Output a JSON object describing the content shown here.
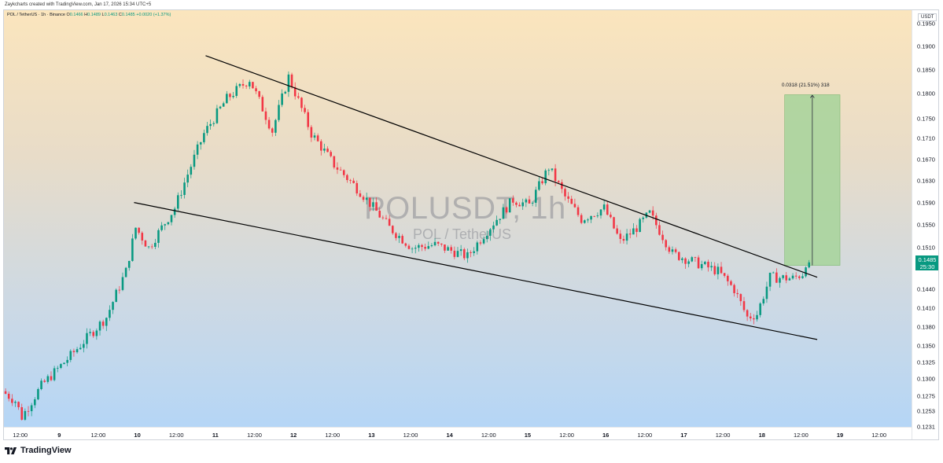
{
  "header": {
    "credit": "Zaykcharts created with TradingView.com, Jan 17, 2026 15:34 UTC+5"
  },
  "info": {
    "symbol_line": "POL / TetherUS · 1h · Binance",
    "ohlc": [
      {
        "label": "O",
        "value": "0.1466"
      },
      {
        "label": "H",
        "value": "0.1489"
      },
      {
        "label": "L",
        "value": "0.1463"
      },
      {
        "label": "C",
        "value": "0.1485"
      }
    ],
    "change": "+0.0020 (+1.37%)"
  },
  "watermark": {
    "ticker": "POLUSDT, 1h",
    "name": "POL / TetherUS"
  },
  "axis": {
    "unit": "USDT",
    "price_label": "0.1485",
    "countdown": "25:30"
  },
  "measure": {
    "label": "0.0318 (21.51%) 318"
  },
  "footer": {
    "brand": "TradingView"
  },
  "colors": {
    "up": "#089981",
    "down": "#f23645",
    "target_fill": "#a6d49a",
    "trendline": "#000000"
  },
  "chart_data": {
    "type": "candlestick",
    "symbol": "POLUSDT",
    "interval": "1h",
    "exchange": "Binance",
    "y_axis": {
      "scale": "log",
      "range": [
        0.1231,
        0.198
      ],
      "tick_labels": [
        "0.1950",
        "0.1900",
        "0.1850",
        "0.1800",
        "0.1750",
        "0.1710",
        "0.1670",
        "0.1630",
        "0.1590",
        "0.1550",
        "0.1510",
        "0.1485",
        "0.1440",
        "0.1410",
        "0.1380",
        "0.1350",
        "0.1325",
        "0.1300",
        "0.1275",
        "0.1253",
        "0.1231"
      ]
    },
    "x_axis": {
      "tick_labels": [
        "12:00",
        "9",
        "12:00",
        "10",
        "12:00",
        "11",
        "12:00",
        "12",
        "12:00",
        "13",
        "12:00",
        "14",
        "12:00",
        "15",
        "12:00",
        "16",
        "12:00",
        "17",
        "12:00",
        "18",
        "12:00",
        "19",
        "12:00"
      ],
      "range_dates": [
        "2026-01-08 07:00",
        "2026-01-19 22:00"
      ]
    },
    "price_path": [
      {
        "t": "2026-01-08 07:00",
        "p": 0.1282
      },
      {
        "t": "2026-01-08 11:00",
        "p": 0.1268
      },
      {
        "t": "2026-01-08 13:00",
        "p": 0.1245
      },
      {
        "t": "2026-01-08 19:00",
        "p": 0.129
      },
      {
        "t": "2026-01-09 04:00",
        "p": 0.1335
      },
      {
        "t": "2026-01-09 15:00",
        "p": 0.1395
      },
      {
        "t": "2026-01-09 21:00",
        "p": 0.147
      },
      {
        "t": "2026-01-10 00:00",
        "p": 0.1545
      },
      {
        "t": "2026-01-10 04:00",
        "p": 0.151
      },
      {
        "t": "2026-01-10 12:00",
        "p": 0.158
      },
      {
        "t": "2026-01-10 21:00",
        "p": 0.172
      },
      {
        "t": "2026-01-11 04:00",
        "p": 0.179
      },
      {
        "t": "2026-01-11 11:00",
        "p": 0.183
      },
      {
        "t": "2026-01-11 18:00",
        "p": 0.1725
      },
      {
        "t": "2026-01-11 23:00",
        "p": 0.1835
      },
      {
        "t": "2026-01-12 06:00",
        "p": 0.172
      },
      {
        "t": "2026-01-12 13:00",
        "p": 0.166
      },
      {
        "t": "2026-01-12 21:00",
        "p": 0.161
      },
      {
        "t": "2026-01-13 06:00",
        "p": 0.1545
      },
      {
        "t": "2026-01-13 13:00",
        "p": 0.151
      },
      {
        "t": "2026-01-13 20:00",
        "p": 0.1515
      },
      {
        "t": "2026-01-14 06:00",
        "p": 0.1495
      },
      {
        "t": "2026-01-14 12:00",
        "p": 0.154
      },
      {
        "t": "2026-01-14 20:00",
        "p": 0.1595
      },
      {
        "t": "2026-01-15 01:00",
        "p": 0.1585
      },
      {
        "t": "2026-01-15 07:00",
        "p": 0.1655
      },
      {
        "t": "2026-01-15 12:00",
        "p": 0.16
      },
      {
        "t": "2026-01-15 17:00",
        "p": 0.156
      },
      {
        "t": "2026-01-16 00:00",
        "p": 0.158
      },
      {
        "t": "2026-01-16 05:00",
        "p": 0.152
      },
      {
        "t": "2026-01-16 10:00",
        "p": 0.1545
      },
      {
        "t": "2026-01-16 14:00",
        "p": 0.157
      },
      {
        "t": "2026-01-16 21:00",
        "p": 0.15
      },
      {
        "t": "2026-01-17 04:00",
        "p": 0.1485
      },
      {
        "t": "2026-01-17 11:00",
        "p": 0.147
      },
      {
        "t": "2026-01-17 16:00",
        "p": 0.144
      },
      {
        "t": "2026-01-17 20:00",
        "p": 0.1395
      },
      {
        "t": "2026-01-17 23:00",
        "p": 0.14
      },
      {
        "t": "2026-01-18 03:00",
        "p": 0.146
      },
      {
        "t": "2026-01-18 10:00",
        "p": 0.1458
      },
      {
        "t": "2026-01-18 13:00",
        "p": 0.1466
      },
      {
        "t": "2026-01-18 14:00",
        "p": 0.1485
      }
    ],
    "trendlines": [
      {
        "name": "upper",
        "from": {
          "t": "2026-01-10 21:00",
          "p": 0.188
        },
        "to": {
          "t": "2026-01-18 17:00",
          "p": 0.146
        }
      },
      {
        "name": "lower",
        "from": {
          "t": "2026-01-09 23:00",
          "p": 0.159
        },
        "to": {
          "t": "2026-01-18 17:00",
          "p": 0.136
        }
      }
    ],
    "target_box": {
      "t_start": "2026-01-18 07:00",
      "t_end": "2026-01-19 00:00",
      "p_low": 0.148,
      "p_high": 0.1798
    },
    "current_price": 0.1485
  }
}
